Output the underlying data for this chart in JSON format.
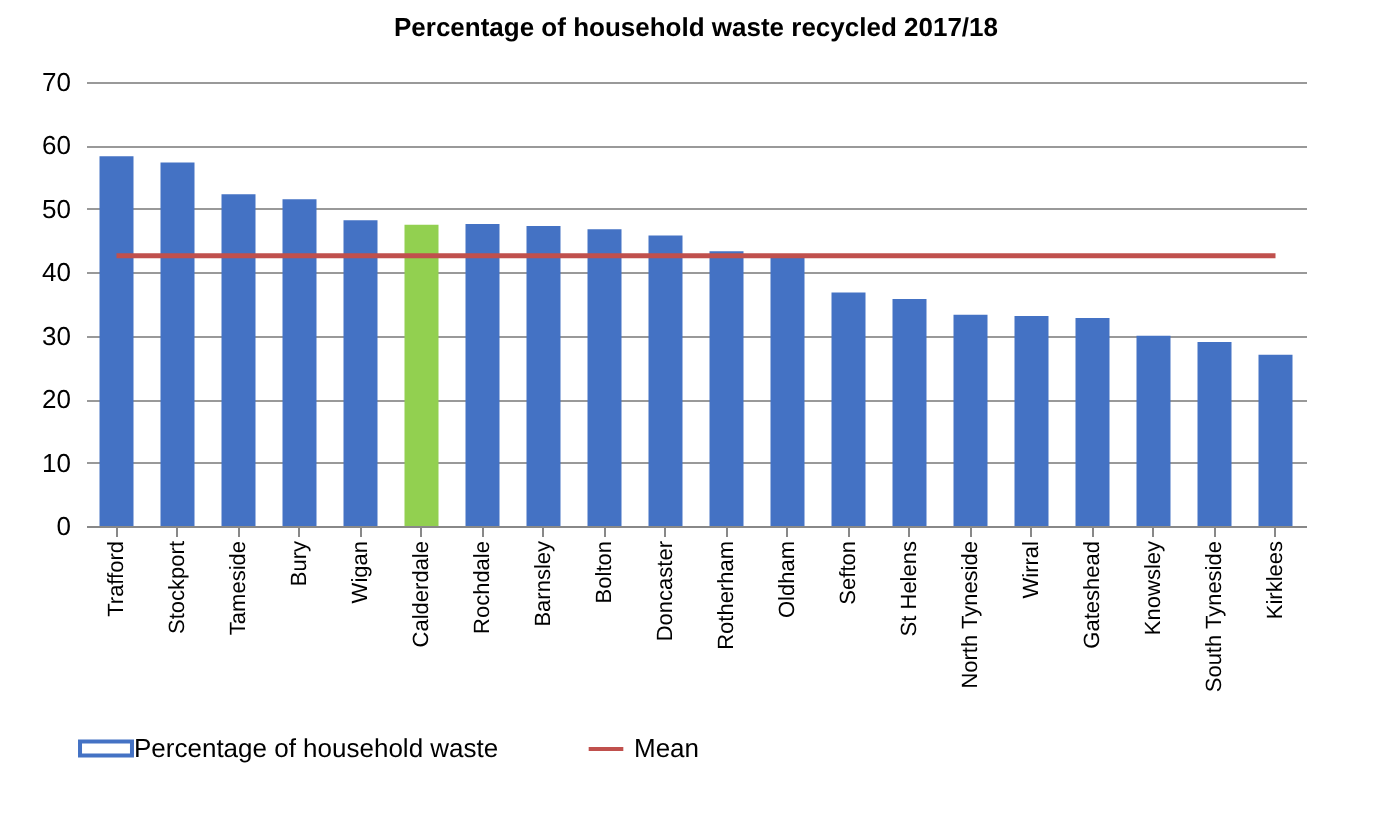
{
  "chart_data": {
    "type": "bar",
    "title": "Percentage of household waste recycled 2017/18",
    "categories": [
      "Trafford",
      "Stockport",
      "Tameside",
      "Bury",
      "Wigan",
      "Calderdale",
      "Rochdale",
      "Barnsley",
      "Bolton",
      "Doncaster",
      "Rotherham",
      "Oldham",
      "Sefton",
      "St Helens",
      "North Tyneside",
      "Wirral",
      "Gateshead",
      "Knowsley",
      "South Tyneside",
      "Kirklees"
    ],
    "series": [
      {
        "name": "Percentage of household waste",
        "color": "#4472c4",
        "colors": [
          "#4472c4",
          "#4472c4",
          "#4472c4",
          "#4472c4",
          "#4472c4",
          "#92d050",
          "#4472c4",
          "#4472c4",
          "#4472c4",
          "#4472c4",
          "#4472c4",
          "#4472c4",
          "#4472c4",
          "#4472c4",
          "#4472c4",
          "#4472c4",
          "#4472c4",
          "#4472c4",
          "#4472c4",
          "#4472c4"
        ],
        "values": [
          58.3,
          57.3,
          52.3,
          51.5,
          48.2,
          47.5,
          47.6,
          47.3,
          46.8,
          45.8,
          43.3,
          42.5,
          36.8,
          35.8,
          33.3,
          33.1,
          32.8,
          30,
          29,
          27
        ]
      },
      {
        "name": "Mean",
        "type": "line",
        "color": "#c0504d",
        "values": [
          42.6,
          42.6,
          42.6,
          42.6,
          42.6,
          42.6,
          42.6,
          42.6,
          42.6,
          42.6,
          42.6,
          42.6,
          42.6,
          42.6,
          42.6,
          42.6,
          42.6,
          42.6,
          42.6,
          42.6
        ]
      }
    ],
    "ylim": [
      0,
      70
    ],
    "yticks": [
      0,
      10,
      20,
      30,
      40,
      50,
      60,
      70
    ],
    "grid": "y",
    "legend": "bottom"
  }
}
